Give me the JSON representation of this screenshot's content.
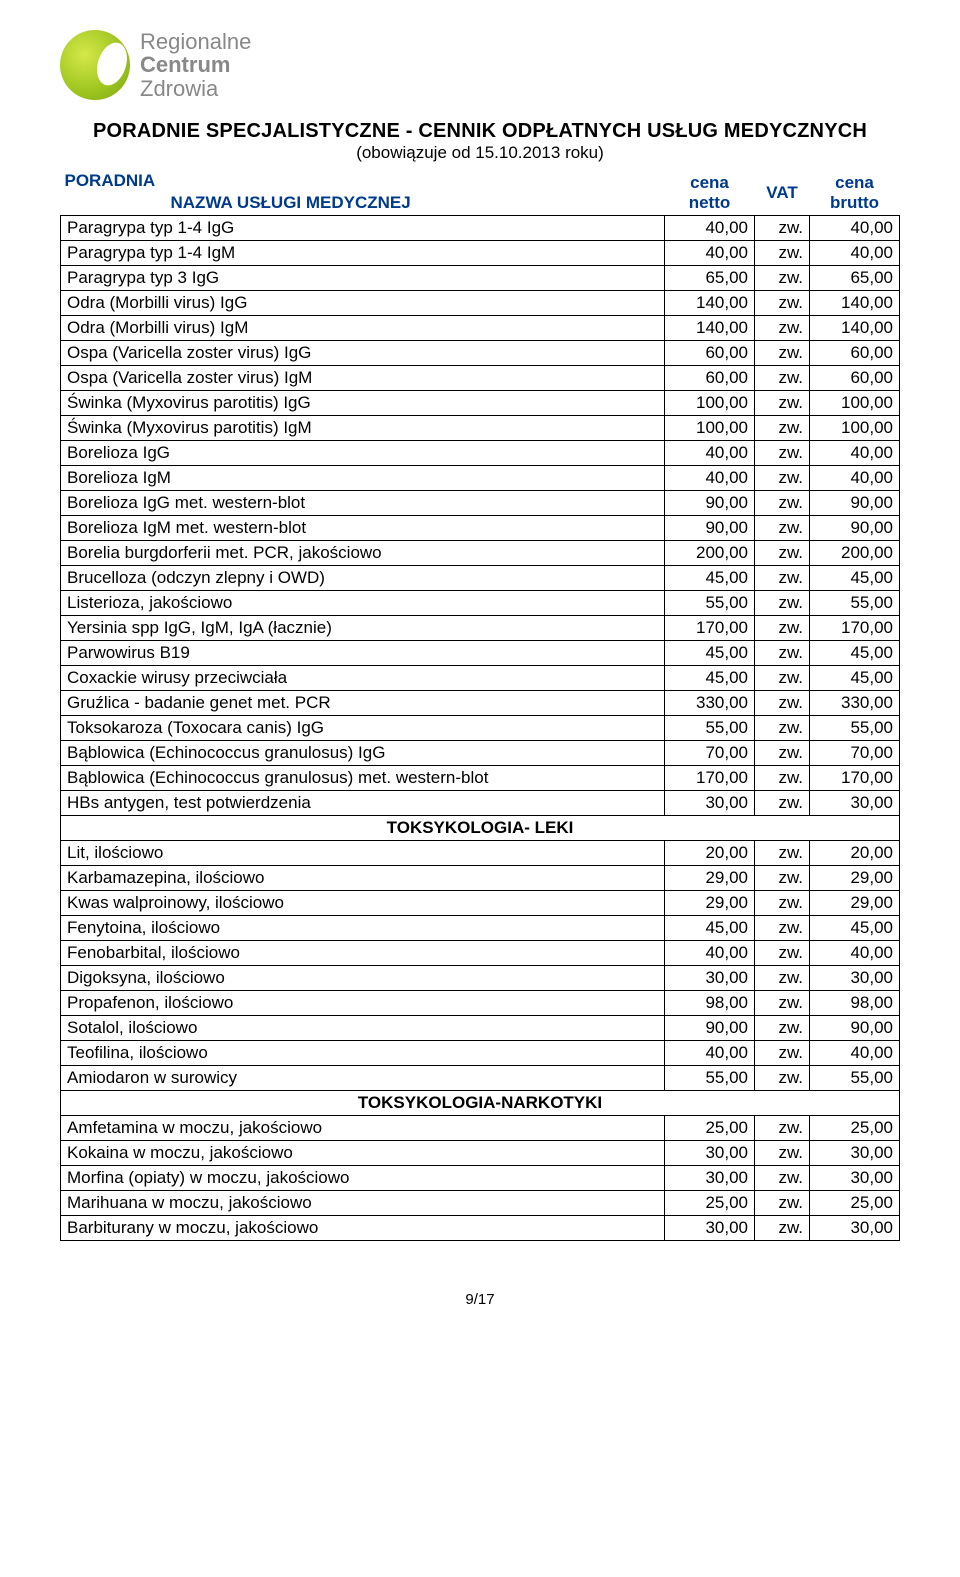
{
  "logo": {
    "line1": "Regionalne",
    "line2": "Centrum",
    "line3": "Zdrowia"
  },
  "title": "PORADNIE SPECJALISTYCZNE - CENNIK ODPŁATNYCH  USŁUG MEDYCZNYCH",
  "subtitle": "(obowiązuje od 15.10.2013 roku)",
  "header": {
    "poradnia": "PORADNIA",
    "name": "NAZWA USŁUGI MEDYCZNEJ",
    "netto": "cena netto",
    "vat": "VAT",
    "brutto": "cena brutto"
  },
  "rows": [
    {
      "name": "Paragrypa typ 1-4 IgG",
      "net": "40,00",
      "vat": "zw.",
      "gross": "40,00"
    },
    {
      "name": "Paragrypa typ 1-4 IgM",
      "net": "40,00",
      "vat": "zw.",
      "gross": "40,00"
    },
    {
      "name": "Paragrypa typ 3 IgG",
      "net": "65,00",
      "vat": "zw.",
      "gross": "65,00"
    },
    {
      "name": "Odra (Morbilli virus) IgG",
      "net": "140,00",
      "vat": "zw.",
      "gross": "140,00"
    },
    {
      "name": "Odra (Morbilli virus) IgM",
      "net": "140,00",
      "vat": "zw.",
      "gross": "140,00"
    },
    {
      "name": "Ospa (Varicella zoster virus) IgG",
      "net": "60,00",
      "vat": "zw.",
      "gross": "60,00"
    },
    {
      "name": "Ospa (Varicella zoster virus) IgM",
      "net": "60,00",
      "vat": "zw.",
      "gross": "60,00"
    },
    {
      "name": "Świnka (Myxovirus parotitis) IgG",
      "net": "100,00",
      "vat": "zw.",
      "gross": "100,00"
    },
    {
      "name": "Świnka (Myxovirus parotitis) IgM",
      "net": "100,00",
      "vat": "zw.",
      "gross": "100,00"
    },
    {
      "name": "Borelioza IgG",
      "net": "40,00",
      "vat": "zw.",
      "gross": "40,00"
    },
    {
      "name": "Borelioza IgM",
      "net": "40,00",
      "vat": "zw.",
      "gross": "40,00"
    },
    {
      "name": "Borelioza IgG met. western-blot",
      "net": "90,00",
      "vat": "zw.",
      "gross": "90,00"
    },
    {
      "name": "Borelioza IgM met. western-blot",
      "net": "90,00",
      "vat": "zw.",
      "gross": "90,00"
    },
    {
      "name": "Borelia burgdorferii met. PCR, jakościowo",
      "net": "200,00",
      "vat": "zw.",
      "gross": "200,00"
    },
    {
      "name": "Brucelloza (odczyn zlepny i OWD)",
      "net": "45,00",
      "vat": "zw.",
      "gross": "45,00"
    },
    {
      "name": "Listerioza, jakościowo",
      "net": "55,00",
      "vat": "zw.",
      "gross": "55,00"
    },
    {
      "name": "Yersinia spp IgG, IgM, IgA (łacznie)",
      "net": "170,00",
      "vat": "zw.",
      "gross": "170,00"
    },
    {
      "name": "Parwowirus B19",
      "net": "45,00",
      "vat": "zw.",
      "gross": "45,00"
    },
    {
      "name": "Coxackie wirusy przeciwciała",
      "net": "45,00",
      "vat": "zw.",
      "gross": "45,00"
    },
    {
      "name": "Gruźlica - badanie genet met. PCR",
      "net": "330,00",
      "vat": "zw.",
      "gross": "330,00"
    },
    {
      "name": "Toksokaroza (Toxocara canis)  IgG",
      "net": "55,00",
      "vat": "zw.",
      "gross": "55,00"
    },
    {
      "name": "Bąblowica (Echinococcus granulosus) IgG",
      "net": "70,00",
      "vat": "zw.",
      "gross": "70,00"
    },
    {
      "name": "Bąblowica (Echinococcus granulosus) met. western-blot",
      "net": "170,00",
      "vat": "zw.",
      "gross": "170,00"
    },
    {
      "name": "HBs antygen, test potwierdzenia",
      "net": "30,00",
      "vat": "zw.",
      "gross": "30,00"
    },
    {
      "section": "TOKSYKOLOGIA-  LEKI"
    },
    {
      "name": "Lit, ilościowo",
      "net": "20,00",
      "vat": "zw.",
      "gross": "20,00"
    },
    {
      "name": "Karbamazepina, ilościowo",
      "net": "29,00",
      "vat": "zw.",
      "gross": "29,00"
    },
    {
      "name": "Kwas walproinowy, ilościowo",
      "net": "29,00",
      "vat": "zw.",
      "gross": "29,00"
    },
    {
      "name": "Fenytoina, ilościowo",
      "net": "45,00",
      "vat": "zw.",
      "gross": "45,00"
    },
    {
      "name": "Fenobarbital, ilościowo",
      "net": "40,00",
      "vat": "zw.",
      "gross": "40,00"
    },
    {
      "name": "Digoksyna, ilościowo",
      "net": "30,00",
      "vat": "zw.",
      "gross": "30,00"
    },
    {
      "name": "Propafenon, ilościowo",
      "net": "98,00",
      "vat": "zw.",
      "gross": "98,00"
    },
    {
      "name": "Sotalol, ilościowo",
      "net": "90,00",
      "vat": "zw.",
      "gross": "90,00"
    },
    {
      "name": "Teofilina, ilościowo",
      "net": "40,00",
      "vat": "zw.",
      "gross": "40,00"
    },
    {
      "name": "Amiodaron w surowicy",
      "net": "55,00",
      "vat": "zw.",
      "gross": "55,00"
    },
    {
      "section": "TOKSYKOLOGIA-NARKOTYKI"
    },
    {
      "name": "Amfetamina w moczu, jakościowo",
      "net": "25,00",
      "vat": "zw.",
      "gross": "25,00"
    },
    {
      "name": "Kokaina w moczu, jakościowo",
      "net": "30,00",
      "vat": "zw.",
      "gross": "30,00"
    },
    {
      "name": "Morfina (opiaty) w moczu, jakościowo",
      "net": "30,00",
      "vat": "zw.",
      "gross": "30,00"
    },
    {
      "name": "Marihuana w moczu, jakościowo",
      "net": "25,00",
      "vat": "zw.",
      "gross": "25,00"
    },
    {
      "name": "Barbiturany w moczu, jakościowo",
      "net": "30,00",
      "vat": "zw.",
      "gross": "30,00"
    }
  ],
  "pagenum": "9/17"
}
